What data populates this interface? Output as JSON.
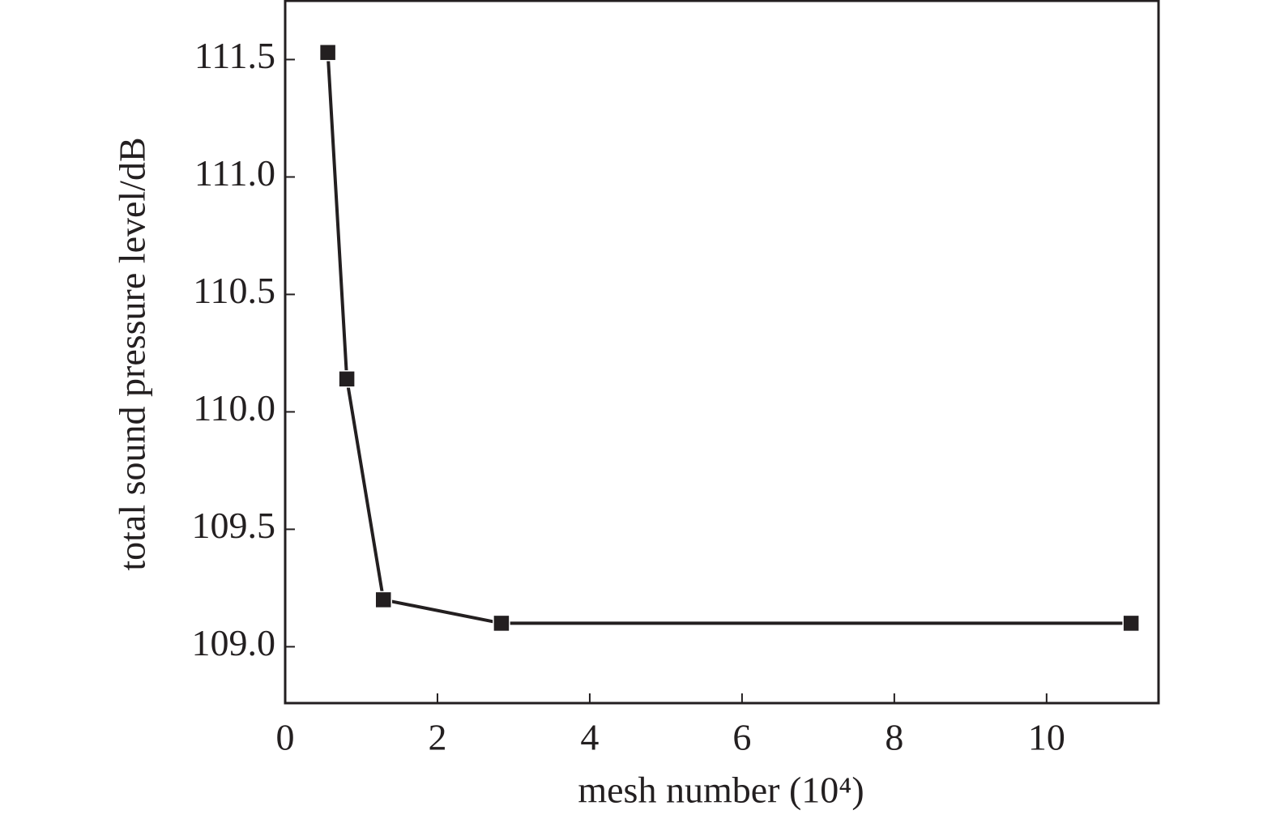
{
  "chart_data": {
    "type": "line",
    "xlabel": "mesh number (10⁴)",
    "ylabel": "total sound pressure level/dB",
    "x": [
      0.56,
      0.81,
      1.29,
      2.84,
      11.11
    ],
    "series": [
      {
        "color": "#231f20",
        "values": [
          111.53,
          110.14,
          109.2,
          109.1,
          109.1
        ]
      }
    ],
    "xlim": [
      0,
      11.47
    ],
    "xticks": [
      0,
      2,
      4,
      6,
      8,
      10
    ],
    "ylim": [
      108.76,
      111.75
    ],
    "yticks": [
      {
        "value": 109,
        "label": "109.0"
      },
      109.5,
      {
        "value": 110,
        "label": "110.0"
      },
      110.5,
      {
        "value": 111,
        "label": "111.0"
      },
      111.5
    ],
    "grid": false
  }
}
